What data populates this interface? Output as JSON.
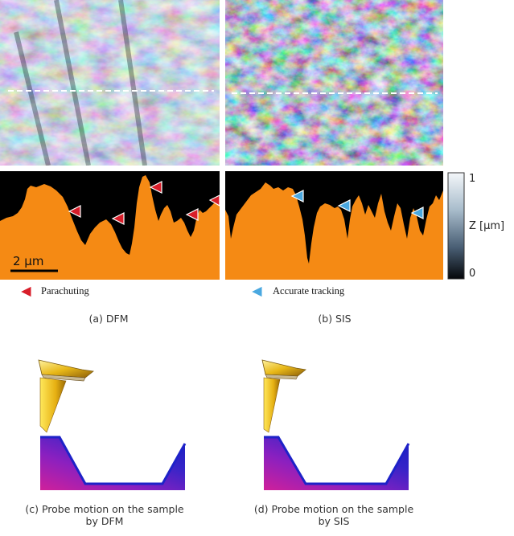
{
  "figure": {
    "colorbar": {
      "max_label": "1",
      "min_label": "0",
      "axis_label": "Z [µm]"
    },
    "scale_bar_label": "2 µm",
    "legend": {
      "parachuting": "Parachuting",
      "accurate_tracking": "Accurate tracking"
    },
    "captions": {
      "a": "(a)  DFM",
      "b": "(b)  SIS",
      "c_line1": "(c)  Probe motion on the sample",
      "c_line2": "by DFM",
      "d_line1": "(d)  Probe motion on the sample",
      "d_line2": "by SIS"
    },
    "colors": {
      "profile_fill": "#f58a14",
      "parachuting_marker": "#d81e2a",
      "tracking_marker": "#4aa8e0",
      "sample_blue": "#1e22c8"
    }
  }
}
